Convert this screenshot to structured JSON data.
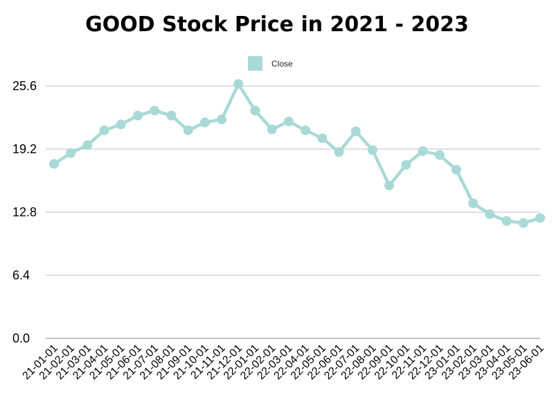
{
  "chart_data": {
    "type": "line",
    "title": "GOOD Stock Price in 2021 - 2023",
    "xlabel": "",
    "ylabel": "",
    "ylim": [
      0,
      25.6
    ],
    "yticks": [
      "0.0",
      "6.4",
      "12.8",
      "19.2",
      "25.6"
    ],
    "ytick_values": [
      0,
      6.4,
      12.8,
      19.2,
      25.6
    ],
    "legend_position": "top-center",
    "grid": true,
    "categories": [
      "21-01-01",
      "21-02-01",
      "21-03-01",
      "21-04-01",
      "21-05-01",
      "21-06-01",
      "21-07-01",
      "21-08-01",
      "21-09-01",
      "21-10-01",
      "21-11-01",
      "21-12-01",
      "22-01-01",
      "22-02-01",
      "22-03-01",
      "22-04-01",
      "22-05-01",
      "22-06-01",
      "22-07-01",
      "22-08-01",
      "22-09-01",
      "22-10-01",
      "22-11-01",
      "22-12-01",
      "23-01-01",
      "23-02-01",
      "23-03-01",
      "23-04-01",
      "23-05-01",
      "23-06-01"
    ],
    "series": [
      {
        "name": "Close",
        "color": "#a8d9d7",
        "values": [
          17.7,
          18.8,
          19.6,
          21.1,
          21.7,
          22.6,
          23.1,
          22.6,
          21.1,
          21.9,
          22.2,
          25.8,
          23.1,
          21.2,
          22.0,
          21.1,
          20.3,
          18.9,
          21.0,
          19.1,
          15.5,
          17.6,
          19.0,
          18.6,
          17.1,
          13.7,
          12.6,
          11.9,
          11.7,
          12.2
        ]
      }
    ]
  },
  "colors": {
    "line": "#a8d9d7",
    "grid": "#bdbdbd",
    "axis": "#888888"
  }
}
